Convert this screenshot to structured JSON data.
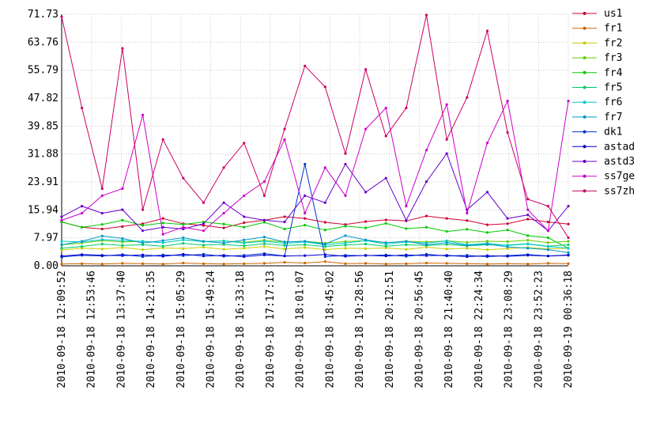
{
  "chart_data": {
    "type": "line",
    "title": "",
    "xlabel": "",
    "ylabel": "",
    "ylim": [
      0,
      71.73
    ],
    "y_ticks": [
      "0.00",
      "7.97",
      "15.94",
      "23.91",
      "31.88",
      "39.85",
      "47.82",
      "55.79",
      "63.76",
      "71.73"
    ],
    "x_start": "2010-09-18 12:09:52",
    "x_end": "2010-09-19 00:36:18",
    "x_ticks": [
      "2010-09-18 12:09:52",
      "2010-09-18 12:53:46",
      "2010-09-18 13:37:40",
      "2010-09-18 14:21:35",
      "2010-09-18 15:05:29",
      "2010-09-18 15:49:24",
      "2010-09-18 16:33:18",
      "2010-09-18 17:17:13",
      "2010-09-18 18:01:07",
      "2010-09-18 18:45:02",
      "2010-09-18 19:28:56",
      "2010-09-18 20:12:51",
      "2010-09-18 20:56:45",
      "2010-09-18 21:40:40",
      "2010-09-18 22:24:34",
      "2010-09-18 23:08:29",
      "2010-09-18 23:52:23",
      "2010-09-19 00:36:18"
    ],
    "grid": true,
    "legend_position": "right",
    "series": [
      {
        "name": "us1",
        "color": "#cc0033",
        "values": [
          12.5,
          11.0,
          10.5,
          11.2,
          12.0,
          13.5,
          12.0,
          11.5,
          10.8,
          12.3,
          13.0,
          14.0,
          13.5,
          12.4,
          11.8,
          12.6,
          13.1,
          12.8,
          14.2,
          13.5,
          12.9,
          11.7,
          12.0,
          13.3,
          12.5,
          11.9
        ]
      },
      {
        "name": "fr1",
        "color": "#cc6600",
        "values": [
          0.5,
          0.6,
          0.5,
          0.7,
          0.6,
          0.5,
          0.8,
          0.6,
          0.5,
          0.6,
          0.7,
          1.0,
          0.8,
          1.2,
          0.6,
          0.7,
          0.5,
          0.6,
          0.8,
          0.7,
          0.6,
          0.5,
          0.6,
          0.5,
          0.7,
          0.6
        ]
      },
      {
        "name": "fr2",
        "color": "#cccc00",
        "values": [
          4.5,
          5.0,
          4.8,
          5.2,
          4.6,
          5.1,
          4.9,
          5.3,
          4.7,
          5.0,
          5.5,
          4.8,
          5.2,
          4.6,
          5.0,
          4.9,
          5.1,
          4.7,
          5.3,
          4.8,
          5.0,
          4.6,
          4.9,
          5.2,
          4.8,
          5.0
        ]
      },
      {
        "name": "fr3",
        "color": "#66cc00",
        "values": [
          6.0,
          6.5,
          7.2,
          6.8,
          7.0,
          6.6,
          7.4,
          6.9,
          7.1,
          6.7,
          7.3,
          6.8,
          7.0,
          6.5,
          6.9,
          7.2,
          6.6,
          7.0,
          6.8,
          7.1,
          6.7,
          7.0,
          6.9,
          7.3,
          6.6,
          7.0
        ]
      },
      {
        "name": "fr4",
        "color": "#00cc00",
        "values": [
          12.5,
          11.0,
          11.8,
          13.0,
          11.5,
          12.2,
          11.8,
          12.5,
          11.9,
          11.0,
          12.4,
          10.5,
          11.6,
          10.2,
          11.3,
          10.8,
          12.1,
          10.6,
          11.0,
          9.8,
          10.4,
          9.5,
          10.2,
          8.6,
          8.0,
          5.0
        ]
      },
      {
        "name": "fr5",
        "color": "#00cc66",
        "values": [
          5.0,
          5.5,
          6.2,
          5.8,
          6.0,
          5.6,
          6.4,
          5.9,
          6.1,
          5.7,
          6.3,
          5.8,
          6.0,
          5.5,
          5.9,
          6.2,
          5.6,
          6.0,
          5.8,
          6.1,
          5.7,
          6.0,
          5.9,
          6.3,
          5.6,
          6.0
        ]
      },
      {
        "name": "fr6",
        "color": "#00cccc",
        "values": [
          7.0,
          6.8,
          7.5,
          7.2,
          7.0,
          6.6,
          7.4,
          6.9,
          7.1,
          6.5,
          7.0,
          6.4,
          6.8,
          6.0,
          6.5,
          7.2,
          6.2,
          6.8,
          6.5,
          7.1,
          6.0,
          6.4,
          5.8,
          6.2,
          5.5,
          5.0
        ]
      },
      {
        "name": "fr7",
        "color": "#0099cc",
        "values": [
          6.0,
          7.0,
          8.5,
          7.8,
          6.5,
          7.2,
          8.0,
          7.0,
          6.5,
          7.4,
          8.2,
          6.8,
          7.0,
          6.2,
          8.6,
          7.4,
          6.6,
          7.0,
          6.0,
          6.6,
          5.8,
          6.2,
          5.4,
          5.0,
          4.6,
          3.8
        ]
      },
      {
        "name": "dk1",
        "color": "#0033cc",
        "values": [
          2.5,
          3.0,
          2.8,
          3.2,
          2.6,
          3.1,
          2.9,
          3.3,
          2.7,
          3.0,
          3.5,
          2.8,
          29.0,
          2.6,
          3.0,
          2.9,
          3.1,
          2.7,
          3.3,
          2.8,
          3.0,
          2.6,
          2.9,
          3.2,
          2.8,
          3.0
        ]
      },
      {
        "name": "astad",
        "color": "#0000cc",
        "values": [
          2.8,
          3.2,
          3.0,
          2.9,
          3.1,
          2.7,
          3.3,
          2.8,
          3.0,
          2.6,
          3.1,
          2.8,
          2.9,
          3.2,
          2.7,
          3.0,
          2.8,
          3.1,
          2.9,
          3.0,
          2.6,
          2.9,
          2.7,
          3.0,
          2.8,
          3.1
        ]
      },
      {
        "name": "astd3",
        "color": "#6600cc",
        "values": [
          14.0,
          17.0,
          15.0,
          16.0,
          10.0,
          11.0,
          10.5,
          12.0,
          18.0,
          14.0,
          13.0,
          12.5,
          20.0,
          18.0,
          29.0,
          21.0,
          25.0,
          13.0,
          24.0,
          32.0,
          16.0,
          21.0,
          13.5,
          14.5,
          10.0,
          17.0
        ]
      },
      {
        "name": "ss7ge",
        "color": "#cc00cc",
        "values": [
          13.0,
          15.0,
          20.0,
          22.0,
          43.0,
          9.0,
          11.0,
          10.0,
          15.0,
          20.0,
          24.0,
          36.0,
          15.0,
          28.0,
          20.0,
          39.0,
          45.0,
          17.0,
          33.0,
          46.0,
          15.0,
          35.0,
          47.0,
          16.0,
          10.0,
          47.0
        ]
      },
      {
        "name": "ss7zh",
        "color": "#cc0066",
        "values": [
          71.0,
          45.0,
          22.0,
          62.0,
          16.0,
          36.0,
          25.0,
          18.0,
          28.0,
          35.0,
          20.0,
          39.0,
          57.0,
          51.0,
          32.0,
          56.0,
          37.0,
          45.0,
          71.5,
          36.0,
          48.0,
          67.0,
          38.0,
          19.0,
          17.0,
          8.0
        ]
      }
    ]
  }
}
